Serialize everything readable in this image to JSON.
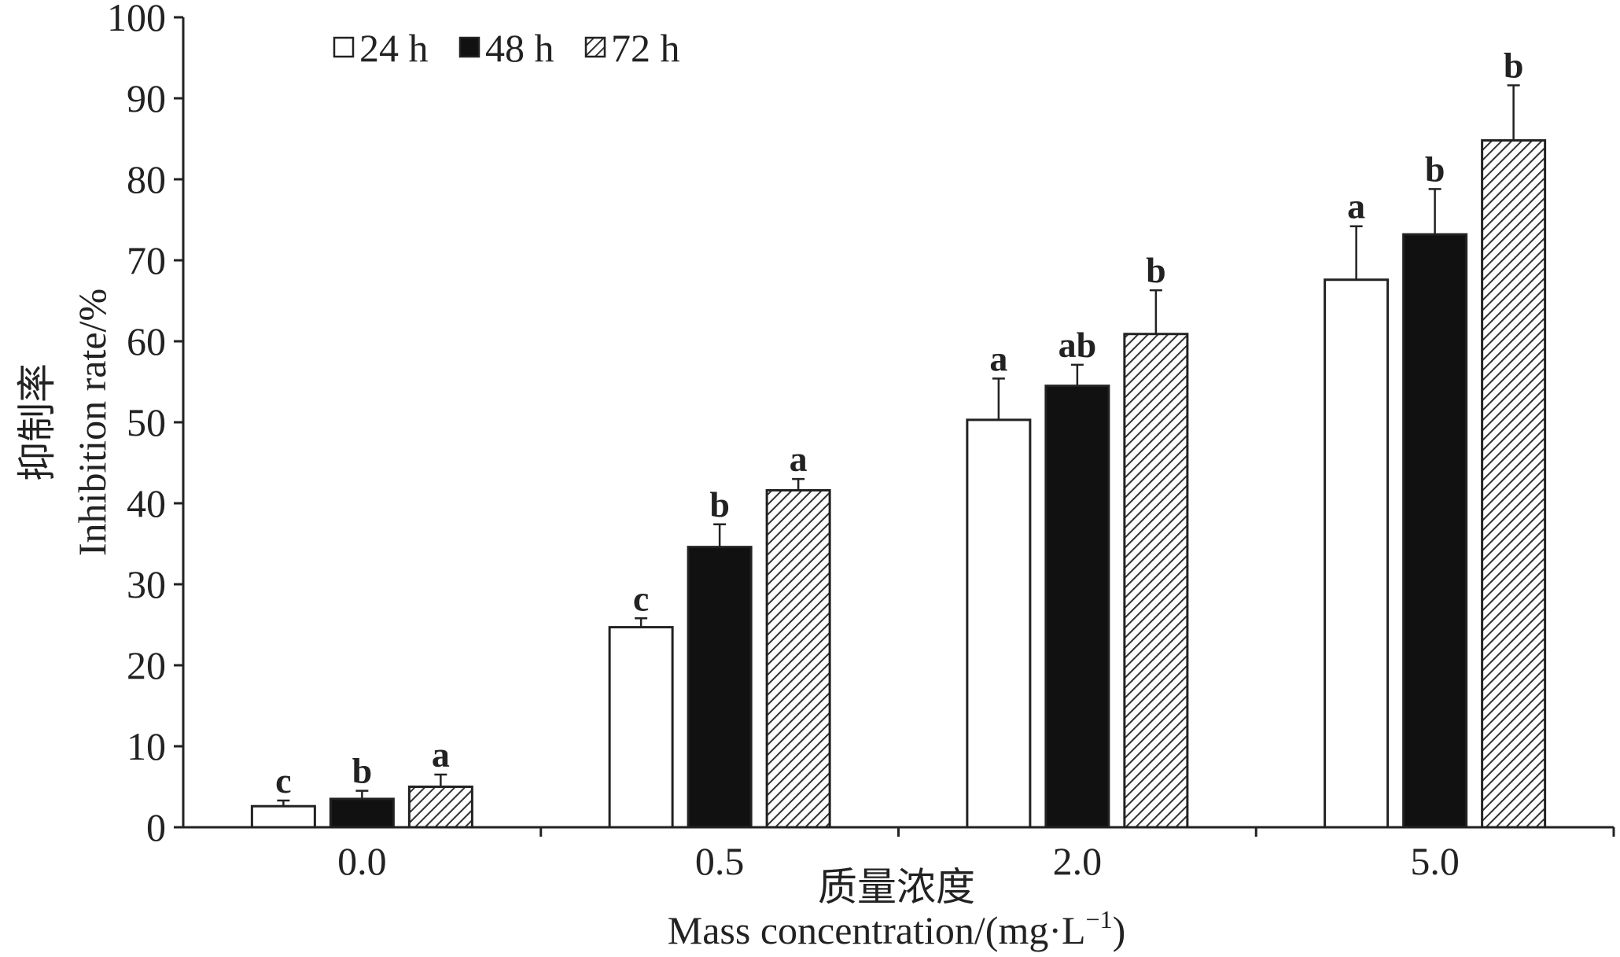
{
  "chart_data": {
    "type": "bar",
    "categories": [
      "0.0",
      "0.5",
      "2.0",
      "5.0"
    ],
    "series": [
      {
        "name": "24 h",
        "values": [
          2.6,
          24.7,
          50.3,
          67.6
        ],
        "errors": [
          0.7,
          1.1,
          5.1,
          6.6
        ],
        "labels": [
          "c",
          "c",
          "a",
          "a"
        ],
        "fill": "#ffffff"
      },
      {
        "name": "48 h",
        "values": [
          3.5,
          34.6,
          54.5,
          73.2
        ],
        "errors": [
          1.0,
          2.8,
          2.6,
          5.6
        ],
        "labels": [
          "b",
          "b",
          "ab",
          "b"
        ],
        "fill": "#111111"
      },
      {
        "name": "72 h",
        "values": [
          5.0,
          41.6,
          60.9,
          84.8
        ],
        "errors": [
          1.5,
          1.4,
          5.4,
          6.8
        ],
        "labels": [
          "a",
          "a",
          "b",
          "b"
        ],
        "fill": "hatch"
      }
    ],
    "y_ticks": [
      "0",
      "10",
      "20",
      "30",
      "40",
      "50",
      "60",
      "70",
      "80",
      "90",
      "100"
    ],
    "ylim": [
      0,
      100
    ],
    "ylabel_cn": "抑制率",
    "ylabel": "Inhibition rate/%",
    "xlabel_cn": "质量浓度",
    "xlabel_main": "Mass concentration/(mg·L",
    "xlabel_sup": "−1",
    "xlabel_close": ")",
    "legend_position": "top-left",
    "grid": false
  }
}
